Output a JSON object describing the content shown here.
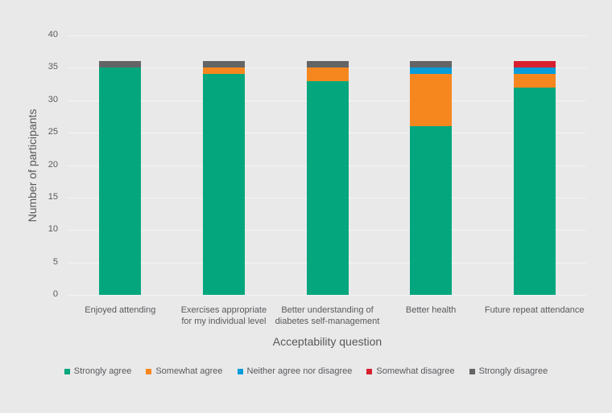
{
  "page": {
    "background": "#e9e9ea",
    "text_color": "#58595b",
    "gridline_color": "#f4f4f6"
  },
  "chart_data": {
    "type": "bar",
    "stacked": true,
    "title": "",
    "xlabel": "Acceptability question",
    "ylabel": "Number of participants",
    "ylim": [
      0,
      40
    ],
    "ytick_step": 5,
    "ytick_labels": [
      "0",
      "5",
      "10",
      "15",
      "20",
      "25",
      "30",
      "35",
      "40"
    ],
    "grid": true,
    "legend_position": "bottom",
    "categories": [
      "Enjoyed attending",
      "Exercises appropriate for my individual level",
      "Better understanding of diabetes self-management",
      "Better health",
      "Future repeat attendance"
    ],
    "category_lines": [
      [
        "Enjoyed attending"
      ],
      [
        "Exercises appropriate",
        "for my individual level"
      ],
      [
        "Better understanding of",
        "diabetes self-management"
      ],
      [
        "Better health"
      ],
      [
        "Future repeat attendance"
      ]
    ],
    "series": [
      {
        "name": "Strongly agree",
        "color": "#04a77d",
        "values": [
          35,
          34,
          33,
          26,
          32
        ]
      },
      {
        "name": "Somewhat agree",
        "color": "#f6871f",
        "values": [
          0,
          1,
          2,
          8,
          2
        ]
      },
      {
        "name": "Neither agree nor disagree",
        "color": "#089dd9",
        "values": [
          0,
          0,
          0,
          1,
          1
        ]
      },
      {
        "name": "Somewhat disagree",
        "color": "#d7202f",
        "values": [
          0,
          0,
          0,
          0,
          1
        ]
      },
      {
        "name": "Strongly disagree",
        "color": "#636466",
        "values": [
          1,
          1,
          1,
          1,
          0
        ]
      }
    ],
    "bar_totals": [
      36,
      36,
      36,
      36,
      36
    ]
  }
}
